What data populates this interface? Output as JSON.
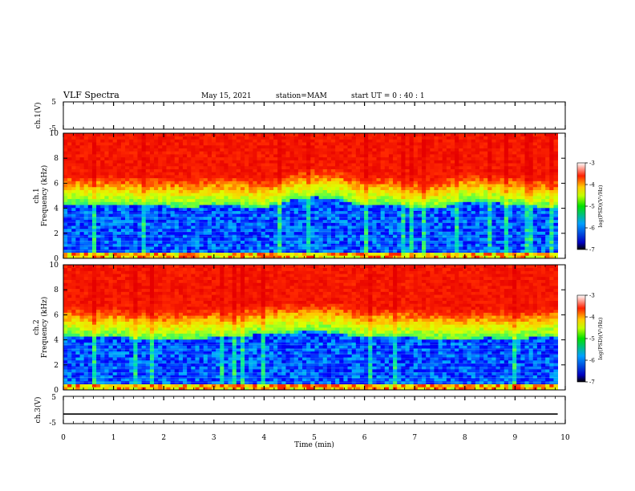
{
  "header": {
    "title": "VLF Spectra",
    "date": "May 15, 2021",
    "station": "station=MAM",
    "start": "start  UT =   0 : 40 : 1"
  },
  "chart_data": [
    {
      "type": "line",
      "name": "channel-1-waveform",
      "ylabel": "ch.1(V)",
      "xlim": [
        0,
        10
      ],
      "ylim": [
        -5,
        5
      ],
      "yticks": [
        "5",
        "-5"
      ],
      "description_values": {
        "min": -5,
        "max": 5,
        "extent_min": 9.85
      }
    },
    {
      "type": "heatmap",
      "name": "channel-1-spectrogram",
      "ylabel": "ch.1\nFrequency (kHz)",
      "xlim": [
        0,
        10
      ],
      "ylim": [
        0,
        10
      ],
      "yticks": [
        "0",
        "2",
        "4",
        "6",
        "8",
        "10"
      ],
      "extent_min": 9.85,
      "band_edge_khz": [
        4.4,
        4.4,
        4.3,
        4.2,
        4.2,
        4.1,
        4.3,
        4.2,
        4.0,
        4.6,
        4.9,
        4.8,
        4.2,
        4.4,
        4.1,
        4.0,
        4.5,
        4.6,
        4.3,
        4.2,
        4.0
      ],
      "colorbar": {
        "label": "log(PSD)(V²/Hz)",
        "range": [
          -7,
          -3
        ],
        "ticks": [
          "-3",
          "-4",
          "-5",
          "-6",
          "-7"
        ]
      }
    },
    {
      "type": "heatmap",
      "name": "channel-2-spectrogram",
      "ylabel": "ch.2\nFrequency (kHz)",
      "xlim": [
        0,
        10
      ],
      "ylim": [
        0,
        10
      ],
      "yticks": [
        "0",
        "2",
        "4",
        "6",
        "8",
        "10"
      ],
      "extent_min": 9.85,
      "band_edge_khz": [
        4.4,
        4.2,
        4.3,
        4.1,
        4.0,
        4.1,
        4.2,
        4.3,
        4.5,
        4.6,
        4.7,
        4.6,
        4.2,
        4.3,
        4.2,
        4.1,
        4.0,
        4.2,
        4.1,
        4.2,
        4.3
      ],
      "colorbar": {
        "label": "log(PSD)(V²/Hz)",
        "range": [
          -7,
          -3
        ],
        "ticks": [
          "-3",
          "-4",
          "-5",
          "-6",
          "-7"
        ]
      }
    },
    {
      "type": "line",
      "name": "channel-3-waveform",
      "ylabel": "ch.3(V)",
      "xlim": [
        0,
        10
      ],
      "ylim": [
        -5,
        5
      ],
      "yticks": [
        "5",
        "-5"
      ],
      "values_x": [
        0,
        9.85
      ],
      "values_y": [
        -1.5,
        -1.5
      ]
    }
  ],
  "xaxis": {
    "label": "Time  (min)",
    "ticks": [
      "0",
      "1",
      "2",
      "3",
      "4",
      "5",
      "6",
      "7",
      "8",
      "9",
      "10"
    ]
  }
}
